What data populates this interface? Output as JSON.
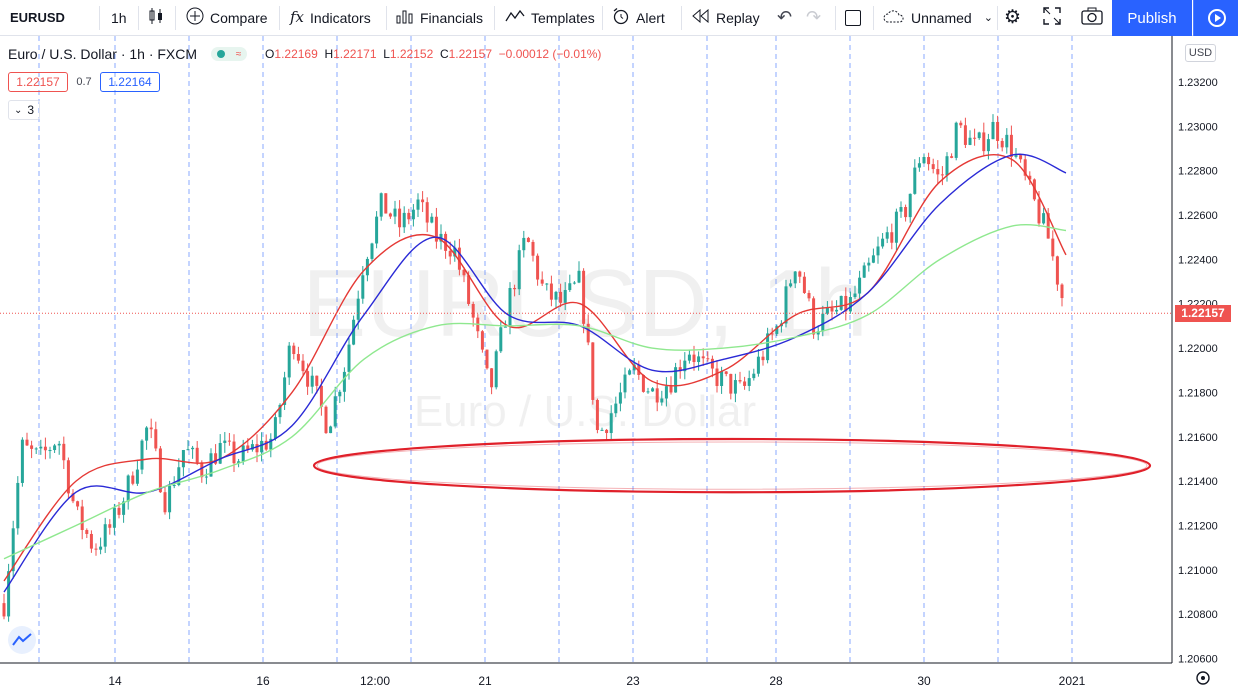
{
  "toolbar": {
    "symbol": "EURUSD",
    "interval": "1h",
    "compare": "Compare",
    "indicators": "Indicators",
    "financials": "Financials",
    "templates": "Templates",
    "alert": "Alert",
    "replay": "Replay",
    "layout_name": "Unnamed",
    "publish": "Publish"
  },
  "legend": {
    "title": "Euro / U.S. Dollar · 1h · FXCM",
    "o_label": "O",
    "o": "1.22169",
    "h_label": "H",
    "h": "1.22171",
    "l_label": "L",
    "l": "1.22152",
    "c_label": "C",
    "c": "1.22157",
    "change": "−0.00012 (−0.01%)",
    "bid": "1.22157",
    "spread": "0.7",
    "ask": "1.22164",
    "indicator_count": "3"
  },
  "watermark": {
    "symbol": "EURUSD, 1h",
    "name": "Euro / U.S. Dollar"
  },
  "colors": {
    "up": "#26a69a",
    "down": "#ef5350",
    "ma_red": "#e53935",
    "ma_blue": "#2a2ad6",
    "ma_green": "#8fe88f",
    "ellipse": "#e0202a"
  },
  "chart_data": {
    "type": "candlestick",
    "currency": "USD",
    "y_ticks": [
      "1.23200",
      "1.23000",
      "1.22800",
      "1.22600",
      "1.22400",
      "1.22200",
      "1.22000",
      "1.21800",
      "1.21600",
      "1.21400",
      "1.21200",
      "1.21000",
      "1.20800",
      "1.20600"
    ],
    "ylim": [
      1.2058,
      1.2338
    ],
    "x_ticks": [
      "14",
      "16",
      "12:00",
      "21",
      "23",
      "28",
      "30",
      "2021"
    ],
    "last_price": "1.22157",
    "price_path": [
      [
        0,
        1.2085
      ],
      [
        1,
        1.2155
      ],
      [
        2,
        1.215
      ],
      [
        3,
        1.216
      ],
      [
        4,
        1.2125
      ],
      [
        5,
        1.211
      ],
      [
        6,
        1.212
      ],
      [
        7,
        1.214
      ],
      [
        8,
        1.2165
      ],
      [
        9,
        1.213
      ],
      [
        10,
        1.2155
      ],
      [
        11,
        1.2145
      ],
      [
        12,
        1.2155
      ],
      [
        13,
        1.215
      ],
      [
        14,
        1.2155
      ],
      [
        15,
        1.216
      ],
      [
        16,
        1.2205
      ],
      [
        17,
        1.2185
      ],
      [
        18,
        1.2165
      ],
      [
        19,
        1.2195
      ],
      [
        20,
        1.224
      ],
      [
        21,
        1.2265
      ],
      [
        22,
        1.2255
      ],
      [
        23,
        1.2265
      ],
      [
        24,
        1.225
      ],
      [
        25,
        1.2245
      ],
      [
        26,
        1.2215
      ],
      [
        27,
        1.218
      ],
      [
        28,
        1.222
      ],
      [
        29,
        1.225
      ],
      [
        30,
        1.2225
      ],
      [
        31,
        1.222
      ],
      [
        32,
        1.223
      ],
      [
        33,
        1.216
      ],
      [
        34,
        1.2175
      ],
      [
        35,
        1.219
      ],
      [
        36,
        1.218
      ],
      [
        37,
        1.2185
      ],
      [
        38,
        1.22
      ],
      [
        39,
        1.219
      ],
      [
        40,
        1.2185
      ],
      [
        41,
        1.218
      ],
      [
        42,
        1.2195
      ],
      [
        43,
        1.221
      ],
      [
        44,
        1.224
      ],
      [
        45,
        1.221
      ],
      [
        46,
        1.2215
      ],
      [
        47,
        1.222
      ],
      [
        48,
        1.2235
      ],
      [
        49,
        1.225
      ],
      [
        50,
        1.226
      ],
      [
        51,
        1.229
      ],
      [
        52,
        1.2275
      ],
      [
        53,
        1.23
      ],
      [
        54,
        1.229
      ],
      [
        55,
        1.23
      ],
      [
        56,
        1.229
      ],
      [
        57,
        1.227
      ],
      [
        58,
        1.225
      ],
      [
        59,
        1.22157
      ]
    ],
    "moving_averages": [
      {
        "color": "red",
        "points": [
          [
            0,
            1.2095
          ],
          [
            4,
            1.214
          ],
          [
            8,
            1.215
          ],
          [
            12,
            1.215
          ],
          [
            16,
            1.218
          ],
          [
            20,
            1.2235
          ],
          [
            24,
            1.225
          ],
          [
            28,
            1.221
          ],
          [
            32,
            1.222
          ],
          [
            36,
            1.2185
          ],
          [
            40,
            1.219
          ],
          [
            44,
            1.2215
          ],
          [
            48,
            1.2225
          ],
          [
            52,
            1.2275
          ],
          [
            56,
            1.2285
          ],
          [
            59,
            1.2242
          ]
        ]
      },
      {
        "color": "blue",
        "points": [
          [
            0,
            1.209
          ],
          [
            4,
            1.2135
          ],
          [
            8,
            1.2135
          ],
          [
            12,
            1.215
          ],
          [
            16,
            1.2165
          ],
          [
            20,
            1.2215
          ],
          [
            24,
            1.225
          ],
          [
            28,
            1.2215
          ],
          [
            32,
            1.221
          ],
          [
            36,
            1.219
          ],
          [
            40,
            1.2195
          ],
          [
            44,
            1.2205
          ],
          [
            48,
            1.2225
          ],
          [
            52,
            1.2265
          ],
          [
            56,
            1.2287
          ],
          [
            59,
            1.2279
          ]
        ]
      },
      {
        "color": "green",
        "points": [
          [
            0,
            1.2105
          ],
          [
            4,
            1.212
          ],
          [
            8,
            1.2135
          ],
          [
            12,
            1.2145
          ],
          [
            16,
            1.216
          ],
          [
            20,
            1.2195
          ],
          [
            24,
            1.221
          ],
          [
            28,
            1.221
          ],
          [
            32,
            1.221
          ],
          [
            36,
            1.22
          ],
          [
            40,
            1.22
          ],
          [
            44,
            1.2205
          ],
          [
            48,
            1.2215
          ],
          [
            52,
            1.224
          ],
          [
            56,
            1.2255
          ],
          [
            59,
            1.2253
          ]
        ]
      }
    ],
    "annotation": {
      "shape": "ellipse",
      "center_price": 1.2147,
      "price_span": [
        1.2135,
        1.2159
      ]
    },
    "grid": "vertical dashed session lines",
    "legend_placement": "top-left"
  }
}
